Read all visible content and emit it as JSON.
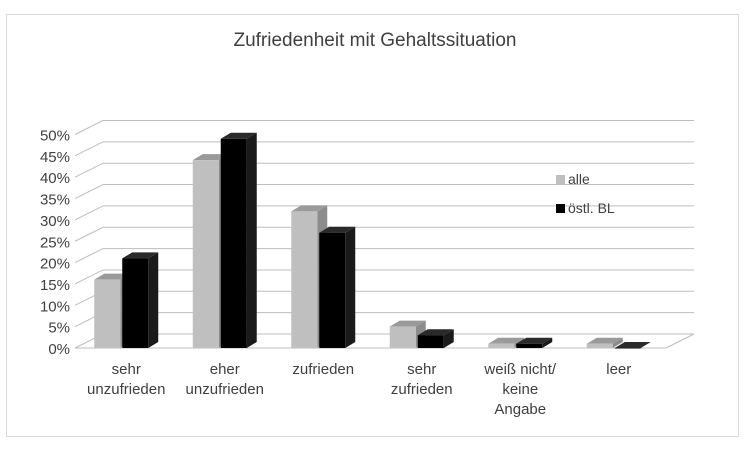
{
  "chart_data": {
    "type": "bar",
    "title": "Zufriedenheit mit Gehaltssituation",
    "categories": [
      [
        "sehr",
        "unzufrieden"
      ],
      [
        "eher",
        "unzufrieden"
      ],
      [
        "zufrieden"
      ],
      [
        "sehr",
        "zufrieden"
      ],
      [
        "weiß nicht/",
        "keine",
        "Angabe"
      ],
      [
        "leer"
      ]
    ],
    "series": [
      {
        "name": "alle",
        "values": [
          16,
          44,
          32,
          5,
          1,
          1
        ],
        "color": "#bfbfbf",
        "top_color": "#9a9a9a",
        "side_color": "#8c8c8c"
      },
      {
        "name": "östl. BL",
        "values": [
          21,
          49,
          27,
          3,
          1,
          0
        ],
        "color": "#000000",
        "top_color": "#2a2a2a",
        "side_color": "#1a1a1a"
      }
    ],
    "y_ticks": [
      "0%",
      "5%",
      "10%",
      "15%",
      "20%",
      "25%",
      "30%",
      "35%",
      "40%",
      "45%",
      "50%"
    ],
    "ylim": [
      0,
      50
    ],
    "grid": true,
    "legend_position": "right"
  }
}
